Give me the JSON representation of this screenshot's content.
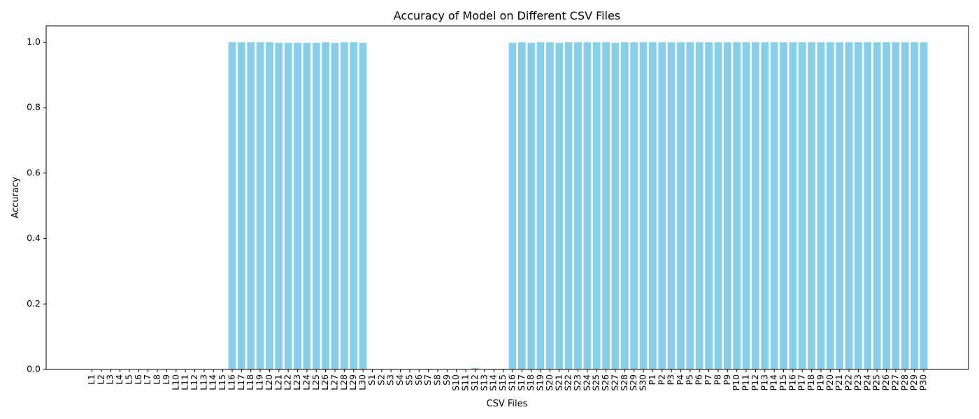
{
  "chart_data": {
    "type": "bar",
    "title": "Accuracy of Model on Different CSV Files",
    "xlabel": "CSV Files",
    "ylabel": "Accuracy",
    "ylim": [
      0,
      1.05
    ],
    "yticks": [
      "0.0",
      "0.2",
      "0.4",
      "0.6",
      "0.8",
      "1.0"
    ],
    "grid": false,
    "legend": "none",
    "bar_color": "#87ceeb",
    "categories": [
      "L1",
      "L2",
      "L3",
      "L4",
      "L5",
      "L6",
      "L7",
      "L8",
      "L9",
      "L10",
      "L11",
      "L12",
      "L13",
      "L14",
      "L15",
      "L16",
      "L17",
      "L18",
      "L19",
      "L20",
      "L21",
      "L22",
      "L23",
      "L24",
      "L25",
      "L26",
      "L27",
      "L28",
      "L29",
      "L30",
      "S1",
      "S2",
      "S3",
      "S4",
      "S5",
      "S6",
      "S7",
      "S8",
      "S9",
      "S10",
      "S11",
      "S12",
      "S13",
      "S14",
      "S15",
      "S16",
      "S17",
      "S18",
      "S19",
      "S20",
      "S21",
      "S22",
      "S23",
      "S24",
      "S25",
      "S26",
      "S27",
      "S28",
      "S29",
      "S30",
      "P1",
      "P2",
      "P3",
      "P4",
      "P5",
      "P6",
      "P7",
      "P8",
      "P9",
      "P10",
      "P11",
      "P12",
      "P13",
      "P14",
      "P15",
      "P16",
      "P17",
      "P18",
      "P19",
      "P20",
      "P21",
      "P22",
      "P23",
      "P24",
      "P25",
      "P26",
      "P27",
      "P28",
      "P29",
      "P30"
    ],
    "values": [
      0,
      0,
      0,
      0,
      0,
      0,
      0,
      0,
      0,
      0,
      0,
      0,
      0,
      0,
      0,
      1.0,
      1.0,
      1.0,
      1.0,
      1.0,
      0.998,
      0.998,
      0.998,
      0.998,
      0.998,
      1.0,
      0.998,
      1.0,
      1.0,
      0.998,
      0,
      0,
      0,
      0,
      0,
      0,
      0.002,
      0,
      0,
      0,
      0,
      0.004,
      0.001,
      0.002,
      0.002,
      0.998,
      1.0,
      0.998,
      1.0,
      1.0,
      0.998,
      1.0,
      1.0,
      1.0,
      1.0,
      1.0,
      0.998,
      1.0,
      1.0,
      1.0,
      1.0,
      1.0,
      1.0,
      1.0,
      1.0,
      1.0,
      1.0,
      1.0,
      1.0,
      1.0,
      1.0,
      1.0,
      1.0,
      1.0,
      1.0,
      1.0,
      1.0,
      1.0,
      1.0,
      1.0,
      1.0,
      1.0,
      1.0,
      1.0,
      1.0,
      1.0,
      1.0,
      1.0,
      1.0,
      1.0
    ]
  }
}
